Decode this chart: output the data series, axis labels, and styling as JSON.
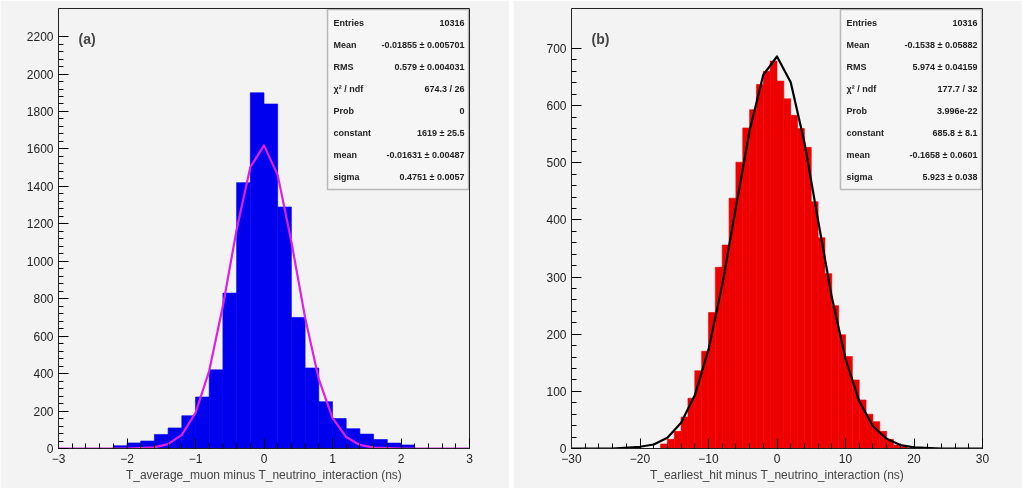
{
  "chart_data": [
    {
      "type": "histogram",
      "xlabel": "T_average_muon minus T_neutrino_interaction (ns)",
      "xlim": [
        -3,
        3
      ],
      "ylim": [
        0,
        2350
      ],
      "xticks": [
        -3,
        -2,
        -1,
        0,
        1,
        2,
        3
      ],
      "yticks": [
        0,
        200,
        400,
        600,
        800,
        1000,
        1200,
        1400,
        1600,
        1800,
        2000,
        2200
      ],
      "grid": false,
      "bins": [
        -3,
        -2.8,
        -2.6,
        -2.4,
        -2.2,
        -2,
        -1.8,
        -1.6,
        -1.4,
        -1.2,
        -1,
        -0.8,
        -0.6,
        -0.4,
        -0.2,
        0,
        0.2,
        0.4,
        0.6,
        0.8,
        1,
        1.2,
        1.4,
        1.6,
        1.8,
        2,
        2.2,
        2.4,
        2.6,
        2.8,
        3
      ],
      "series": [
        {
          "color": "#0000ee",
          "values": [
            0,
            0,
            0,
            0,
            15,
            30,
            40,
            75,
            110,
            175,
            275,
            420,
            830,
            1420,
            1900,
            1840,
            1290,
            700,
            430,
            250,
            160,
            106,
            77,
            48,
            29,
            19,
            0,
            0,
            0,
            0
          ]
        },
        {
          "type": "line",
          "color": "#e020e0",
          "x": [
            -3,
            -2,
            -1.6,
            -1.4,
            -1.2,
            -1,
            -0.8,
            -0.6,
            -0.4,
            -0.2,
            0,
            0.2,
            0.4,
            0.6,
            0.8,
            1,
            1.2,
            1.4,
            1.6,
            2,
            3
          ],
          "values": [
            0,
            0,
            6,
            23,
            73,
            190,
            415,
            761,
            1168,
            1502,
            1619,
            1460,
            1104,
            699,
            370,
            164,
            61,
            19,
            5,
            0,
            0
          ]
        }
      ],
      "annotations": [
        "(a)",
        "Entries",
        "10316",
        "Mean",
        "-0.01855 ± 0.005701",
        "RMS",
        "0.579 ± 0.004031",
        "χ² / ndf",
        "674.3 / 26",
        "Prob",
        "0",
        "constant",
        "1619 ± 25.5",
        "mean",
        "-0.01631 ± 0.00487",
        "sigma",
        "0.4751 ± 0.0057"
      ]
    },
    {
      "type": "histogram",
      "xlabel": "T_earliest_hit minus T_neutrino_interaction (ns)",
      "xlim": [
        -30,
        30
      ],
      "ylim": [
        0,
        770
      ],
      "xticks": [
        -30,
        -20,
        -10,
        0,
        10,
        20,
        30
      ],
      "yticks": [
        0,
        100,
        200,
        300,
        400,
        500,
        600,
        700
      ],
      "grid": false,
      "bins": [
        -30,
        -29,
        -28,
        -27,
        -26,
        -25,
        -24,
        -23,
        -22,
        -21,
        -20,
        -19,
        -18,
        -17,
        -16,
        -15,
        -14,
        -13,
        -12,
        -11,
        -10,
        -9,
        -8,
        -7,
        -6,
        -5,
        -4,
        -3,
        -2,
        -1,
        0,
        1,
        2,
        3,
        4,
        5,
        6,
        7,
        8,
        9,
        10,
        11,
        12,
        13,
        14,
        15,
        16,
        17,
        18,
        19,
        20,
        21,
        22,
        23,
        24,
        25,
        26,
        27,
        28,
        29,
        30
      ],
      "series": [
        {
          "color": "#ee0000",
          "values": [
            0,
            0,
            0,
            0,
            0,
            0,
            0,
            0,
            0,
            0,
            0,
            0,
            0,
            8,
            16,
            30,
            55,
            88,
            136,
            170,
            238,
            317,
            356,
            438,
            501,
            561,
            593,
            637,
            660,
            678,
            643,
            612,
            583,
            560,
            527,
            432,
            369,
            306,
            250,
            199,
            161,
            120,
            85,
            60,
            47,
            30,
            16,
            6,
            3,
            0,
            0,
            0,
            0,
            0,
            0,
            0,
            0,
            0,
            0,
            0
          ]
        },
        {
          "type": "line",
          "color": "#000000",
          "x": [
            -30,
            -24,
            -20,
            -18,
            -16,
            -14,
            -12,
            -10,
            -8,
            -6,
            -4,
            -2,
            0,
            2,
            4,
            6,
            8,
            10,
            12,
            14,
            16,
            18,
            20,
            24,
            30
          ],
          "values": [
            0,
            0,
            3,
            7,
            19,
            45,
            93,
            173,
            286,
            422,
            556,
            654,
            686,
            641,
            536,
            399,
            265,
            157,
            83,
            39,
            17,
            6,
            2,
            0,
            0
          ]
        }
      ],
      "annotations": [
        "(b)",
        "Entries",
        "10316",
        "Mean",
        "-0.1538 ± 0.05882",
        "RMS",
        "5.974 ± 0.04159",
        "χ² / ndf",
        "177.7 / 32",
        "Prob",
        "3.996e-22",
        "constant",
        "685.8 ± 8.1",
        "mean",
        "-0.1658 ± 0.0601",
        "sigma",
        "5.923 ± 0.038"
      ]
    }
  ]
}
